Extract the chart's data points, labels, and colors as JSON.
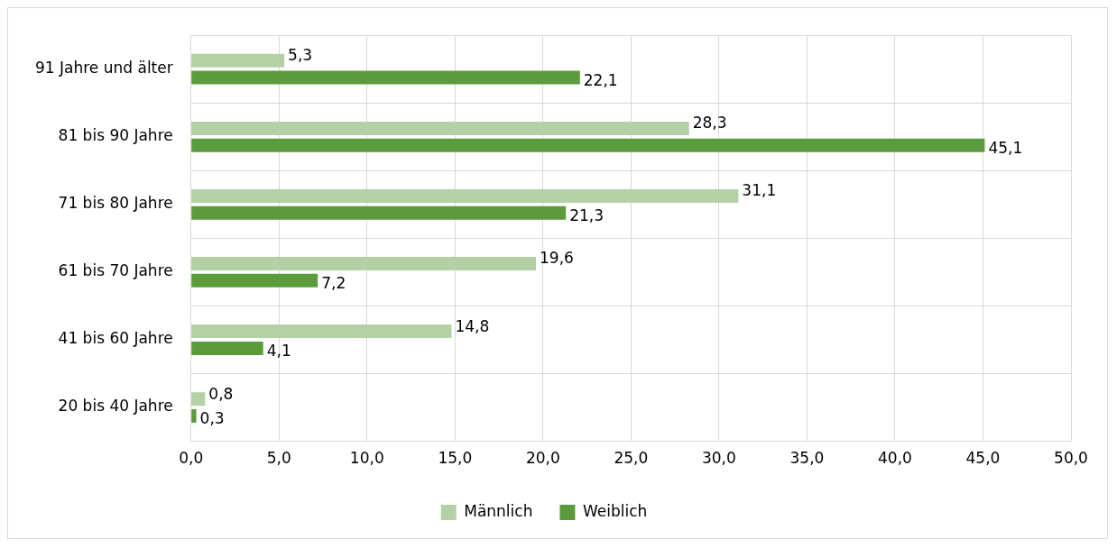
{
  "chart_data": {
    "type": "bar",
    "orientation": "horizontal",
    "categories": [
      "91 Jahre und älter",
      "81 bis 90 Jahre",
      "71 bis 80 Jahre",
      "61 bis 70 Jahre",
      "41 bis 60 Jahre",
      "20 bis 40 Jahre"
    ],
    "series": [
      {
        "name": "Männlich",
        "color": "#b3d1a4",
        "values": [
          5.3,
          28.3,
          31.1,
          19.6,
          14.8,
          0.8
        ],
        "value_labels": [
          "5,3",
          "28,3",
          "31,1",
          "19,6",
          "14,8",
          "0,8"
        ]
      },
      {
        "name": "Weiblich",
        "color": "#5b9b3c",
        "values": [
          22.1,
          45.1,
          21.3,
          7.2,
          4.1,
          0.3
        ],
        "value_labels": [
          "22,1",
          "45,1",
          "21,3",
          "7,2",
          "4,1",
          "0,3"
        ]
      }
    ],
    "xlim": [
      0,
      50
    ],
    "xticks": [
      {
        "value": 0,
        "label": "0,0"
      },
      {
        "value": 5,
        "label": "5,0"
      },
      {
        "value": 10,
        "label": "10,0"
      },
      {
        "value": 15,
        "label": "15,0"
      },
      {
        "value": 20,
        "label": "20,0"
      },
      {
        "value": 25,
        "label": "25,0"
      },
      {
        "value": 30,
        "label": "30,0"
      },
      {
        "value": 35,
        "label": "35,0"
      },
      {
        "value": 40,
        "label": "40,0"
      },
      {
        "value": 45,
        "label": "45,0"
      },
      {
        "value": 50,
        "label": "50,0"
      }
    ],
    "grid": true,
    "legend": "bottom"
  }
}
